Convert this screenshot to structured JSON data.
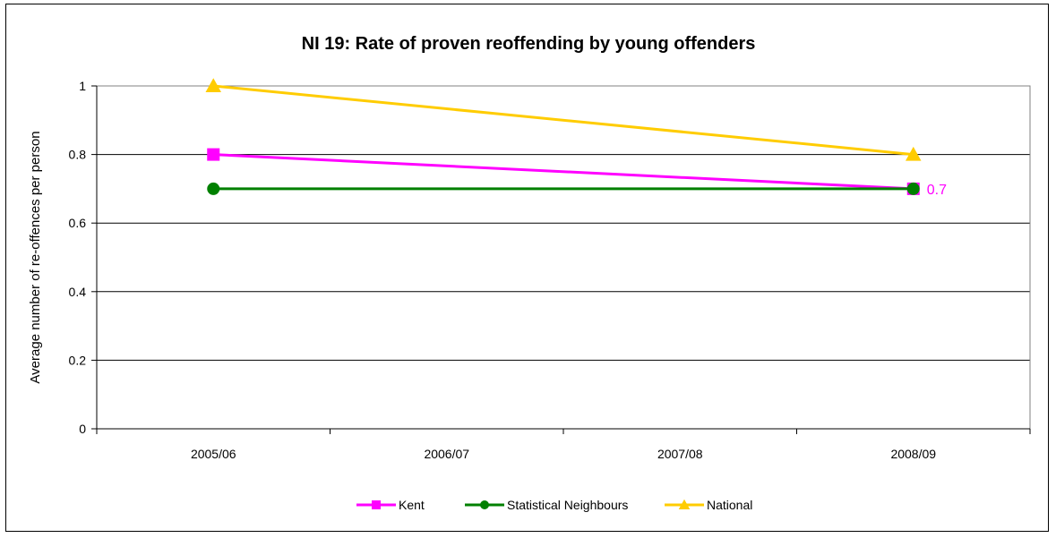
{
  "chart_data": {
    "type": "line",
    "title": "NI 19: Rate of proven reoffending by young offenders",
    "xlabel": "",
    "ylabel": "Average number of re-offences per person",
    "categories": [
      "2005/06",
      "2006/07",
      "2007/08",
      "2008/09"
    ],
    "ylim": [
      0,
      1
    ],
    "yticks": [
      "0",
      "0.2",
      "0.4",
      "0.6",
      "0.8",
      "1"
    ],
    "grid": true,
    "legend_position": "bottom",
    "series": [
      {
        "name": "Kent",
        "color": "#FF00FF",
        "marker": "square",
        "values": [
          0.8,
          null,
          null,
          0.7
        ]
      },
      {
        "name": "Statistical Neighbours",
        "color": "#008000",
        "marker": "circle",
        "values": [
          0.7,
          null,
          null,
          0.7
        ]
      },
      {
        "name": "National",
        "color": "#FFCC00",
        "marker": "triangle",
        "values": [
          1.0,
          null,
          null,
          0.8
        ]
      }
    ],
    "annotations": [
      {
        "series": "Kent",
        "category": "2008/09",
        "text": "0.7"
      }
    ]
  }
}
